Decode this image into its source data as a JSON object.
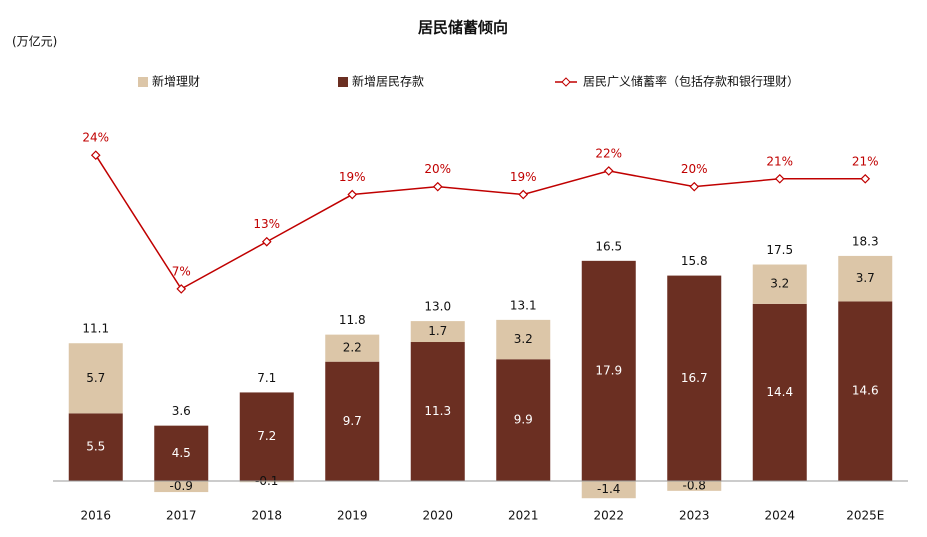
{
  "chart_data": {
    "type": "bar",
    "stacked": true,
    "title": "居民储蓄倾向",
    "unit_label": "(万亿元)",
    "categories": [
      "2016",
      "2017",
      "2018",
      "2019",
      "2020",
      "2021",
      "2022",
      "2023",
      "2024",
      "2025E"
    ],
    "series": [
      {
        "name": "新增理财",
        "color": "#dcc6a8",
        "values": [
          5.7,
          -0.9,
          -0.1,
          2.2,
          1.7,
          3.2,
          -1.4,
          -0.8,
          3.2,
          3.7
        ]
      },
      {
        "name": "新增居民存款",
        "color": "#6b2f22",
        "values": [
          5.5,
          4.5,
          7.2,
          9.7,
          11.3,
          9.9,
          17.9,
          16.7,
          14.4,
          14.6
        ]
      },
      {
        "name": "居民广义储蓄率（包括存款和银行理财）",
        "type": "line",
        "axis": "y2",
        "color": "#c00000",
        "values": [
          24,
          7,
          13,
          19,
          20,
          19,
          22,
          20,
          21,
          21
        ],
        "value_labels": [
          "24%",
          "7%",
          "13%",
          "19%",
          "20%",
          "19%",
          "22%",
          "20%",
          "21%",
          "21%"
        ]
      }
    ],
    "totals": {
      "values": [
        11.1,
        3.6,
        7.1,
        11.8,
        13.0,
        13.1,
        16.5,
        15.8,
        17.5,
        18.3
      ],
      "value_labels": [
        "11.1",
        "3.6",
        "7.1",
        "11.8",
        "13.0",
        "13.1",
        "16.5",
        "15.8",
        "17.5",
        "18.3"
      ]
    },
    "ylim": [
      -2,
      20
    ],
    "y2lim": [
      0,
      30
    ],
    "grid": false
  }
}
